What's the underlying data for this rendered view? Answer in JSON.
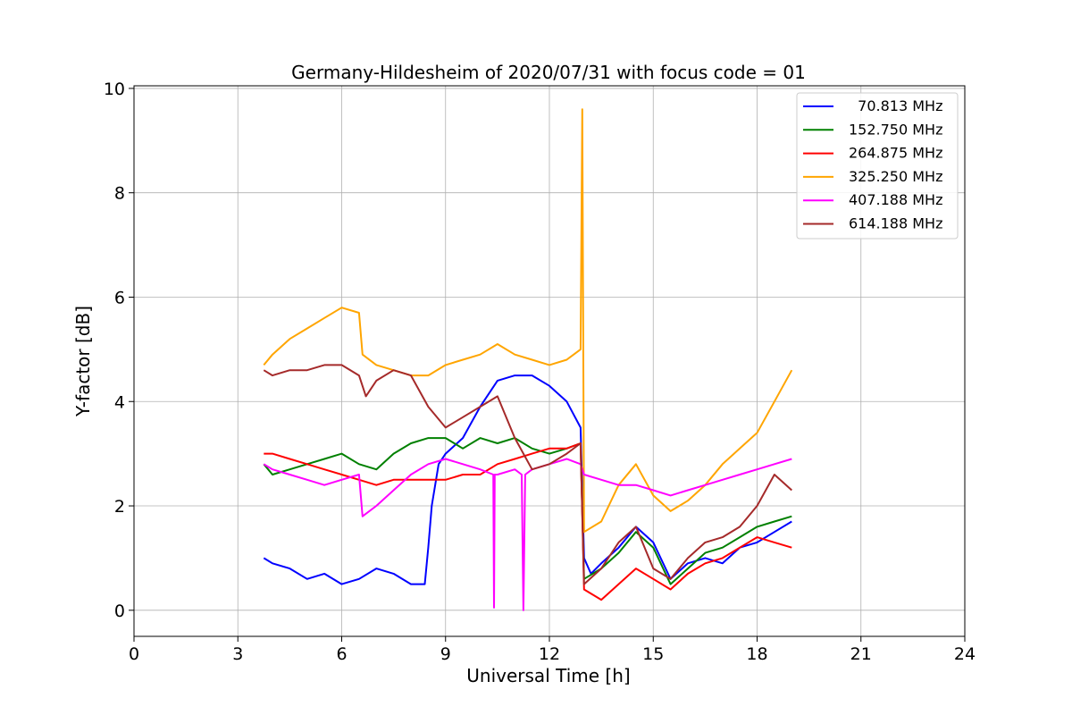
{
  "chart_data": {
    "type": "line",
    "title": "Germany-Hildesheim of 2020/07/31 with focus code = 01",
    "xlabel": "Universal Time [h]",
    "ylabel": "Y-factor [dB]",
    "xlim": [
      0,
      24
    ],
    "ylim": [
      -0.5,
      10.05
    ],
    "xticks": [
      0,
      3,
      6,
      9,
      12,
      15,
      18,
      21,
      24
    ],
    "yticks": [
      0,
      2,
      4,
      6,
      8,
      10
    ],
    "grid": true,
    "legend_position": "top-right",
    "series": [
      {
        "name": "  70.813 MHz",
        "color": "#0000ff",
        "x": [
          3.75,
          4.0,
          4.5,
          5.0,
          5.5,
          6.0,
          6.5,
          7.0,
          7.5,
          8.0,
          8.4,
          8.5,
          8.6,
          8.8,
          9.0,
          9.5,
          10.0,
          10.5,
          11.0,
          11.5,
          12.0,
          12.5,
          12.9,
          13.0,
          13.2,
          13.5,
          14.0,
          14.5,
          15.0,
          15.5,
          16.0,
          16.5,
          17.0,
          17.5,
          18.0,
          18.5,
          19.0
        ],
        "values": [
          1.0,
          0.9,
          0.8,
          0.6,
          0.7,
          0.5,
          0.6,
          0.8,
          0.7,
          0.5,
          0.5,
          1.2,
          2.0,
          2.8,
          3.0,
          3.3,
          3.9,
          4.4,
          4.5,
          4.5,
          4.3,
          4.0,
          3.5,
          1.0,
          0.7,
          0.9,
          1.2,
          1.6,
          1.3,
          0.6,
          0.9,
          1.0,
          0.9,
          1.2,
          1.3,
          1.5,
          1.7
        ]
      },
      {
        "name": "152.750 MHz",
        "color": "#008000",
        "x": [
          3.75,
          4.0,
          4.5,
          5.0,
          5.5,
          6.0,
          6.5,
          7.0,
          7.5,
          8.0,
          8.5,
          9.0,
          9.5,
          10.0,
          10.5,
          11.0,
          11.5,
          12.0,
          12.5,
          12.9,
          13.0,
          13.5,
          14.0,
          14.5,
          15.0,
          15.5,
          16.0,
          16.5,
          17.0,
          17.5,
          18.0,
          18.5,
          19.0
        ],
        "values": [
          2.8,
          2.6,
          2.7,
          2.8,
          2.9,
          3.0,
          2.8,
          2.7,
          3.0,
          3.2,
          3.3,
          3.3,
          3.1,
          3.3,
          3.2,
          3.3,
          3.1,
          3.0,
          3.1,
          3.2,
          0.6,
          0.8,
          1.1,
          1.5,
          1.2,
          0.5,
          0.8,
          1.1,
          1.2,
          1.4,
          1.6,
          1.7,
          1.8
        ]
      },
      {
        "name": "264.875 MHz",
        "color": "#ff0000",
        "x": [
          3.75,
          4.0,
          4.5,
          5.0,
          5.5,
          6.0,
          6.5,
          7.0,
          7.5,
          8.0,
          8.5,
          9.0,
          9.5,
          10.0,
          10.5,
          11.0,
          11.5,
          12.0,
          12.5,
          12.9,
          13.0,
          13.5,
          14.0,
          14.5,
          15.0,
          15.5,
          16.0,
          16.5,
          17.0,
          17.5,
          18.0,
          18.5,
          19.0
        ],
        "values": [
          3.0,
          3.0,
          2.9,
          2.8,
          2.7,
          2.6,
          2.5,
          2.4,
          2.5,
          2.5,
          2.5,
          2.5,
          2.6,
          2.6,
          2.8,
          2.9,
          3.0,
          3.1,
          3.1,
          3.2,
          0.4,
          0.2,
          0.5,
          0.8,
          0.6,
          0.4,
          0.7,
          0.9,
          1.0,
          1.2,
          1.4,
          1.3,
          1.2
        ]
      },
      {
        "name": "325.250 MHz",
        "color": "#ffa500",
        "x": [
          3.75,
          4.0,
          4.5,
          5.0,
          5.5,
          6.0,
          6.5,
          6.6,
          7.0,
          7.5,
          8.0,
          8.5,
          9.0,
          9.5,
          10.0,
          10.5,
          11.0,
          11.5,
          12.0,
          12.5,
          12.9,
          12.95,
          13.0,
          13.5,
          14.0,
          14.5,
          15.0,
          15.5,
          16.0,
          16.5,
          17.0,
          17.5,
          18.0,
          18.5,
          19.0
        ],
        "values": [
          4.7,
          4.9,
          5.2,
          5.4,
          5.6,
          5.8,
          5.7,
          4.9,
          4.7,
          4.6,
          4.5,
          4.5,
          4.7,
          4.8,
          4.9,
          5.1,
          4.9,
          4.8,
          4.7,
          4.8,
          5.0,
          9.6,
          1.5,
          1.7,
          2.4,
          2.8,
          2.2,
          1.9,
          2.1,
          2.4,
          2.8,
          3.1,
          3.4,
          4.0,
          4.6
        ]
      },
      {
        "name": "407.188 MHz",
        "color": "#ff00ff",
        "x": [
          3.75,
          4.0,
          4.5,
          5.0,
          5.5,
          6.0,
          6.5,
          6.6,
          7.0,
          7.5,
          8.0,
          8.5,
          9.0,
          9.5,
          10.0,
          10.38,
          10.4,
          10.42,
          10.5,
          11.0,
          11.2,
          11.25,
          11.3,
          11.5,
          12.0,
          12.5,
          12.9,
          13.0,
          13.5,
          14.0,
          14.5,
          15.0,
          15.5,
          16.0,
          16.5,
          17.0,
          17.5,
          18.0,
          18.5,
          19.0
        ],
        "values": [
          2.8,
          2.7,
          2.6,
          2.5,
          2.4,
          2.5,
          2.6,
          1.8,
          2.0,
          2.3,
          2.6,
          2.8,
          2.9,
          2.8,
          2.7,
          2.6,
          0.05,
          2.6,
          2.6,
          2.7,
          2.6,
          0.0,
          2.6,
          2.7,
          2.8,
          2.9,
          2.8,
          2.6,
          2.5,
          2.4,
          2.4,
          2.3,
          2.2,
          2.3,
          2.4,
          2.5,
          2.6,
          2.7,
          2.8,
          2.9
        ]
      },
      {
        "name": "614.188 MHz",
        "color": "#a52a2a",
        "x": [
          3.75,
          4.0,
          4.5,
          5.0,
          5.5,
          6.0,
          6.5,
          6.7,
          7.0,
          7.5,
          8.0,
          8.5,
          9.0,
          9.5,
          10.0,
          10.5,
          11.0,
          11.5,
          12.0,
          12.5,
          12.9,
          13.0,
          13.5,
          14.0,
          14.5,
          15.0,
          15.5,
          16.0,
          16.5,
          17.0,
          17.5,
          18.0,
          18.5,
          19.0
        ],
        "values": [
          4.6,
          4.5,
          4.6,
          4.6,
          4.7,
          4.7,
          4.5,
          4.1,
          4.4,
          4.6,
          4.5,
          3.9,
          3.5,
          3.7,
          3.9,
          4.1,
          3.3,
          2.7,
          2.8,
          3.0,
          3.2,
          0.5,
          0.8,
          1.3,
          1.6,
          0.8,
          0.6,
          1.0,
          1.3,
          1.4,
          1.6,
          2.0,
          2.6,
          2.3
        ]
      }
    ]
  }
}
